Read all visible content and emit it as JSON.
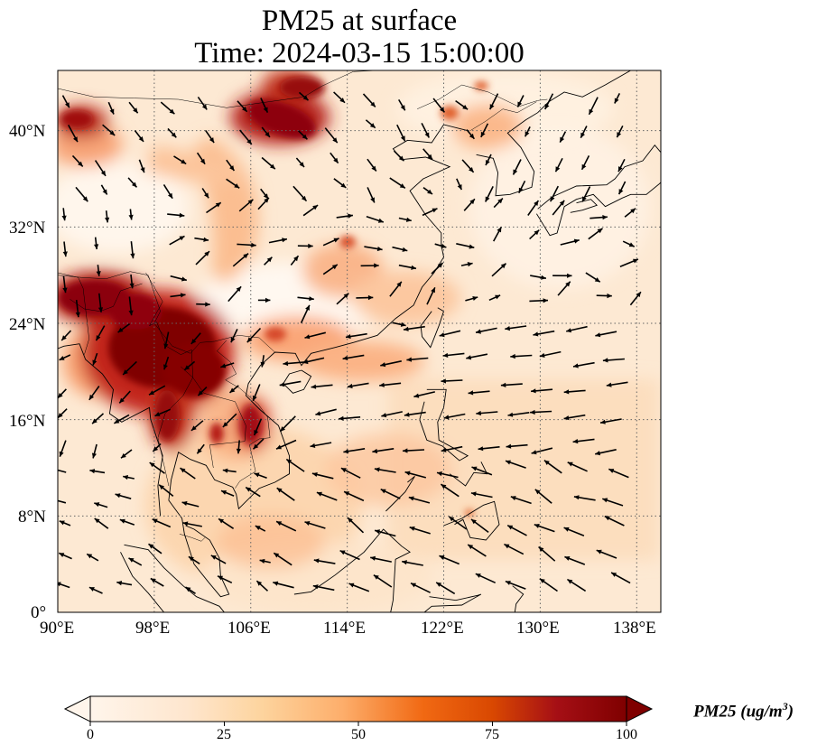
{
  "title": {
    "line1": "PM25 at surface",
    "line2": "Time: 2024-03-15 15:00:00"
  },
  "axes": {
    "lon_ticks": [
      "90°E",
      "98°E",
      "106°E",
      "114°E",
      "122°E",
      "130°E",
      "138°E"
    ],
    "lat_ticks": [
      "40°N",
      "32°N",
      "24°N",
      "16°N",
      "8°N",
      "0°"
    ],
    "lon_range": [
      90,
      140
    ],
    "lat_range": [
      0,
      45
    ],
    "gridlines": "dotted"
  },
  "colorbar": {
    "ticks": [
      "0",
      "25",
      "50",
      "75",
      "100"
    ],
    "range": [
      0,
      100
    ],
    "label_prefix": "PM25 (ug/m",
    "label_sup": "3",
    "label_suffix": ")",
    "extend": "both",
    "colormap": [
      "#fff5eb",
      "#fdd49e",
      "#fdae6b",
      "#f16913",
      "#d94801",
      "#a50f15",
      "#7f0000"
    ]
  },
  "chart_data": {
    "type": "heatmap",
    "variable": "PM25 at surface",
    "time": "2024-03-15 15:00:00",
    "units": "ug/m3",
    "xlim": [
      90,
      140
    ],
    "ylim": [
      0,
      45
    ],
    "high_concentration_regions": [
      {
        "lon": 97,
        "lat": 21,
        "value": 100
      },
      {
        "lon": 101,
        "lat": 21,
        "value": 100
      },
      {
        "lon": 98.5,
        "lat": 17,
        "value": 90
      },
      {
        "lon": 92,
        "lat": 26,
        "value": 90
      },
      {
        "lon": 109,
        "lat": 15.5,
        "value": 75
      },
      {
        "lon": 108,
        "lat": 40,
        "value": 95
      },
      {
        "lon": 111,
        "lat": 43,
        "value": 90
      },
      {
        "lon": 91.5,
        "lat": 40.5,
        "value": 85
      },
      {
        "lon": 119,
        "lat": 28,
        "value": 40
      },
      {
        "lon": 109,
        "lat": 29,
        "value": 35
      },
      {
        "lon": 116,
        "lat": 22,
        "value": 45
      },
      {
        "lon": 125,
        "lat": 41,
        "value": 45
      },
      {
        "lon": 123,
        "lat": 8.5,
        "value": 55
      }
    ]
  }
}
